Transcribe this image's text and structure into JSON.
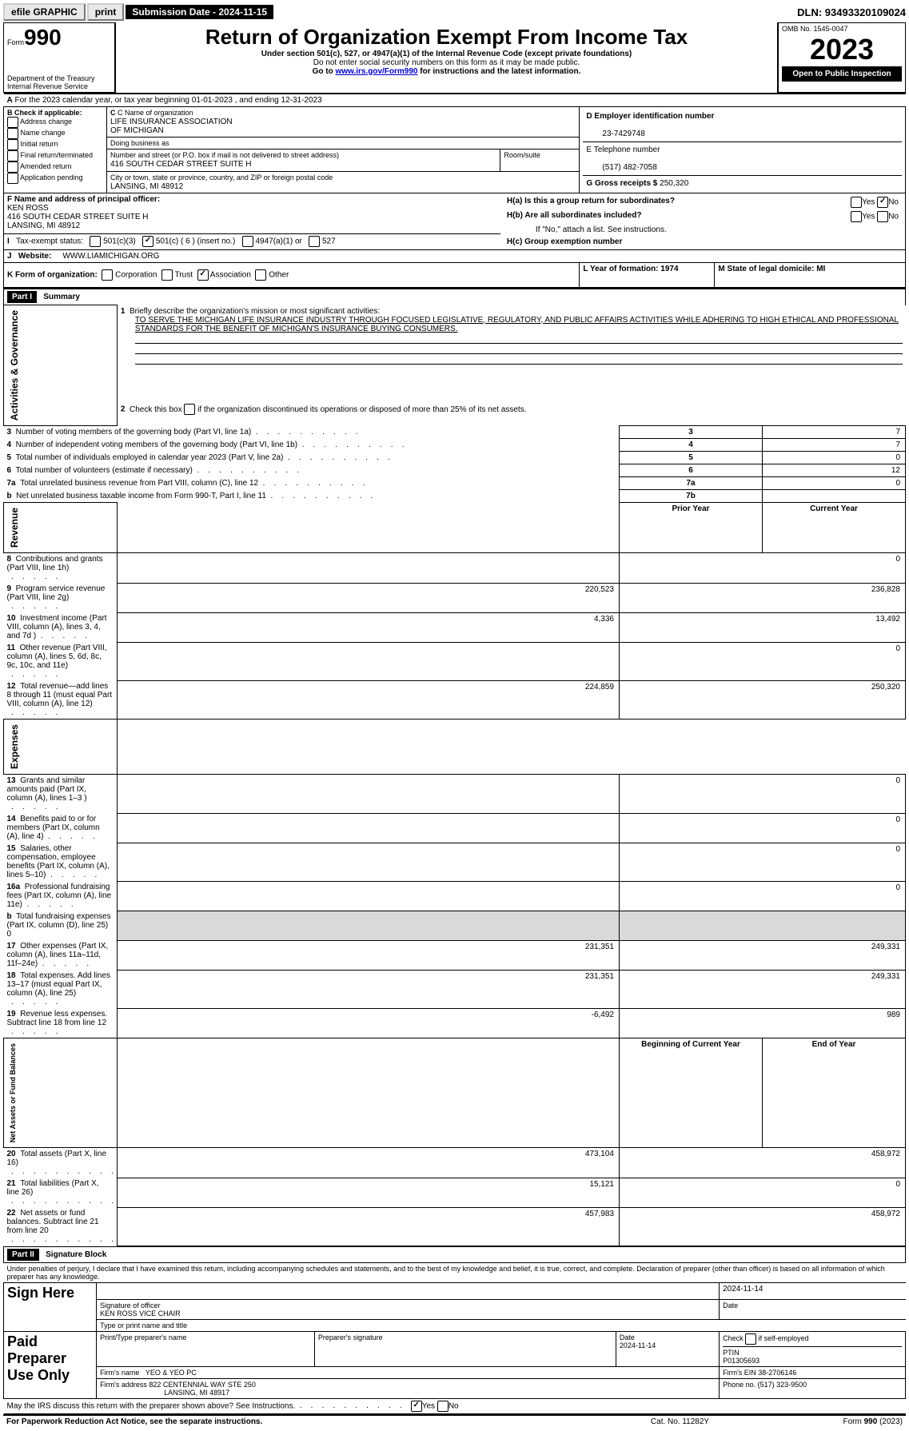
{
  "topbar": {
    "efile": "efile GRAPHIC",
    "print": "print",
    "submission_label": "Submission Date - 2024-11-15",
    "dln": "DLN: 93493320109024"
  },
  "header": {
    "form_prefix": "Form",
    "form_number": "990",
    "title": "Return of Organization Exempt From Income Tax",
    "subtitle": "Under section 501(c), 527, or 4947(a)(1) of the Internal Revenue Code (except private foundations)",
    "warning": "Do not enter social security numbers on this form as it may be made public.",
    "goto_prefix": "Go to ",
    "goto_link": "www.irs.gov/Form990",
    "goto_suffix": " for instructions and the latest information.",
    "dept": "Department of the Treasury",
    "irs": "Internal Revenue Service",
    "omb": "OMB No. 1545-0047",
    "year": "2023",
    "open": "Open to Public Inspection"
  },
  "sectionA": {
    "line": "For the 2023 calendar year, or tax year beginning 01-01-2023    , and ending 12-31-2023",
    "b_label": "B Check if applicable:",
    "b_opts": [
      "Address change",
      "Name change",
      "Initial return",
      "Final return/terminated",
      "Amended return",
      "Application pending"
    ],
    "c_label": "C Name of organization",
    "org_name": "LIFE INSURANCE ASSOCIATION",
    "org_name2": "OF MICHIGAN",
    "dba": "Doing business as",
    "addr_label": "Number and street (or P.O. box if mail is not delivered to street address)",
    "addr": "416 SOUTH CEDAR STREET SUITE H",
    "room": "Room/suite",
    "city_label": "City or town, state or province, country, and ZIP or foreign postal code",
    "city": "LANSING, MI  48912",
    "d_label": "D Employer identification number",
    "ein": "23-7429748",
    "e_label": "E Telephone number",
    "phone": "(517) 482-7058",
    "g_label": "G Gross receipts $",
    "gross": "250,320",
    "f_label": "F  Name and address of principal officer:",
    "officer_name": "KEN ROSS",
    "officer_addr1": "416 SOUTH CEDAR STREET SUITE H",
    "officer_addr2": "LANSING, MI  48912",
    "ha_label": "H(a)  Is this a group return for subordinates?",
    "hb_label": "H(b)  Are all subordinates included?",
    "hb_note": "If \"No,\" attach a list. See instructions.",
    "hc_label": "H(c)  Group exemption number ",
    "yes": "Yes",
    "no": "No",
    "i_label": "Tax-exempt status:",
    "i_501c3": "501(c)(3)",
    "i_501c": "501(c) ( 6 ) (insert no.)",
    "i_4947": "4947(a)(1) or",
    "i_527": "527",
    "j_label": "Website: ",
    "website": "WWW.LIAMICHIGAN.ORG",
    "k_label": "K Form of organization:",
    "k_corp": "Corporation",
    "k_trust": "Trust",
    "k_assoc": "Association",
    "k_other": "Other",
    "l_label": "L Year of formation: 1974",
    "m_label": "M State of legal domicile: MI"
  },
  "part1": {
    "label": "Part I",
    "title": "Summary",
    "q1": "Briefly describe the organization's mission or most significant activities:",
    "mission": "TO SERVE THE MICHIGAN LIFE INSURANCE INDUSTRY THROUGH FOCUSED LEGISLATIVE, REGULATORY, AND PUBLIC AFFAIRS ACTIVITIES WHILE ADHERING TO HIGH ETHICAL AND PROFESSIONAL STANDARDS FOR THE BENEFIT OF MICHIGAN'S INSURANCE BUYING CONSUMERS.",
    "side_ag": "Activities & Governance",
    "side_rev": "Revenue",
    "side_exp": "Expenses",
    "side_net": "Net Assets or Fund Balances",
    "q2": "Check this box       if the organization discontinued its operations or disposed of more than 25% of its net assets.",
    "rows_ag": [
      {
        "n": "3",
        "label": "Number of voting members of the governing body (Part VI, line 1a)",
        "box": "3",
        "val": "7"
      },
      {
        "n": "4",
        "label": "Number of independent voting members of the governing body (Part VI, line 1b)",
        "box": "4",
        "val": "7"
      },
      {
        "n": "5",
        "label": "Total number of individuals employed in calendar year 2023 (Part V, line 2a)",
        "box": "5",
        "val": "0"
      },
      {
        "n": "6",
        "label": "Total number of volunteers (estimate if necessary)",
        "box": "6",
        "val": "12"
      },
      {
        "n": "7a",
        "label": "Total unrelated business revenue from Part VIII, column (C), line 12",
        "box": "7a",
        "val": "0"
      },
      {
        "n": "b",
        "label": "Net unrelated business taxable income from Form 990-T, Part I, line 11",
        "box": "7b",
        "val": ""
      }
    ],
    "col_prior": "Prior Year",
    "col_current": "Current Year",
    "rows_rev": [
      {
        "n": "8",
        "label": "Contributions and grants (Part VIII, line 1h)",
        "prior": "",
        "curr": "0"
      },
      {
        "n": "9",
        "label": "Program service revenue (Part VIII, line 2g)",
        "prior": "220,523",
        "curr": "236,828"
      },
      {
        "n": "10",
        "label": "Investment income (Part VIII, column (A), lines 3, 4, and 7d )",
        "prior": "4,336",
        "curr": "13,492"
      },
      {
        "n": "11",
        "label": "Other revenue (Part VIII, column (A), lines 5, 6d, 8c, 9c, 10c, and 11e)",
        "prior": "",
        "curr": "0"
      },
      {
        "n": "12",
        "label": "Total revenue—add lines 8 through 11 (must equal Part VIII, column (A), line 12)",
        "prior": "224,859",
        "curr": "250,320"
      }
    ],
    "rows_exp": [
      {
        "n": "13",
        "label": "Grants and similar amounts paid (Part IX, column (A), lines 1–3 )",
        "prior": "",
        "curr": "0"
      },
      {
        "n": "14",
        "label": "Benefits paid to or for members (Part IX, column (A), line 4)",
        "prior": "",
        "curr": "0"
      },
      {
        "n": "15",
        "label": "Salaries, other compensation, employee benefits (Part IX, column (A), lines 5–10)",
        "prior": "",
        "curr": "0"
      },
      {
        "n": "16a",
        "label": "Professional fundraising fees (Part IX, column (A), line 11e)",
        "prior": "",
        "curr": "0"
      },
      {
        "n": "b",
        "label": "Total fundraising expenses (Part IX, column (D), line 25) 0",
        "prior": null,
        "curr": null
      },
      {
        "n": "17",
        "label": "Other expenses (Part IX, column (A), lines 11a–11d, 11f–24e)",
        "prior": "231,351",
        "curr": "249,331"
      },
      {
        "n": "18",
        "label": "Total expenses. Add lines 13–17 (must equal Part IX, column (A), line 25)",
        "prior": "231,351",
        "curr": "249,331"
      },
      {
        "n": "19",
        "label": "Revenue less expenses. Subtract line 18 from line 12",
        "prior": "-6,492",
        "curr": "989"
      }
    ],
    "col_boy": "Beginning of Current Year",
    "col_eoy": "End of Year",
    "rows_net": [
      {
        "n": "20",
        "label": "Total assets (Part X, line 16)",
        "prior": "473,104",
        "curr": "458,972"
      },
      {
        "n": "21",
        "label": "Total liabilities (Part X, line 26)",
        "prior": "15,121",
        "curr": "0"
      },
      {
        "n": "22",
        "label": "Net assets or fund balances. Subtract line 21 from line 20",
        "prior": "457,983",
        "curr": "458,972"
      }
    ]
  },
  "part2": {
    "label": "Part II",
    "title": "Signature Block",
    "declaration": "Under penalties of perjury, I declare that I have examined this return, including accompanying schedules and statements, and to the best of my knowledge and belief, it is true, correct, and complete. Declaration of preparer (other than officer) is based on all information of which preparer has any knowledge.",
    "sign_here": "Sign Here",
    "sig_officer": "Signature of officer",
    "sig_name": "KEN ROSS  VICE CHAIR",
    "sig_type": "Type or print name and title",
    "sig_date_label": "Date",
    "sig_date": "2024-11-14",
    "paid": "Paid Preparer Use Only",
    "prep_name_label": "Print/Type preparer's name",
    "prep_sig_label": "Preparer's signature",
    "prep_date_label": "Date",
    "prep_date": "2024-11-14",
    "check_self": "Check        if self-employed",
    "ptin_label": "PTIN",
    "ptin": "P01305693",
    "firm_name_label": "Firm's name    ",
    "firm_name": "YEO & YEO PC",
    "firm_ein_label": "Firm's EIN  ",
    "firm_ein": "38-2706146",
    "firm_addr_label": "Firm's address ",
    "firm_addr1": "822 CENTENNIAL WAY STE 250",
    "firm_addr2": "LANSING, MI  48917",
    "firm_phone_label": "Phone no. ",
    "firm_phone": "(517) 323-9500",
    "discuss": "May the IRS discuss this return with the preparer shown above? See Instructions.",
    "paperwork": "For Paperwork Reduction Act Notice, see the separate instructions.",
    "catno": "Cat. No. 11282Y",
    "formfoot": "Form 990 (2023)"
  },
  "colors": {
    "black": "#000000",
    "white": "#ffffff",
    "gray_fill": "#d9d9d9",
    "link": "#0000cc"
  }
}
